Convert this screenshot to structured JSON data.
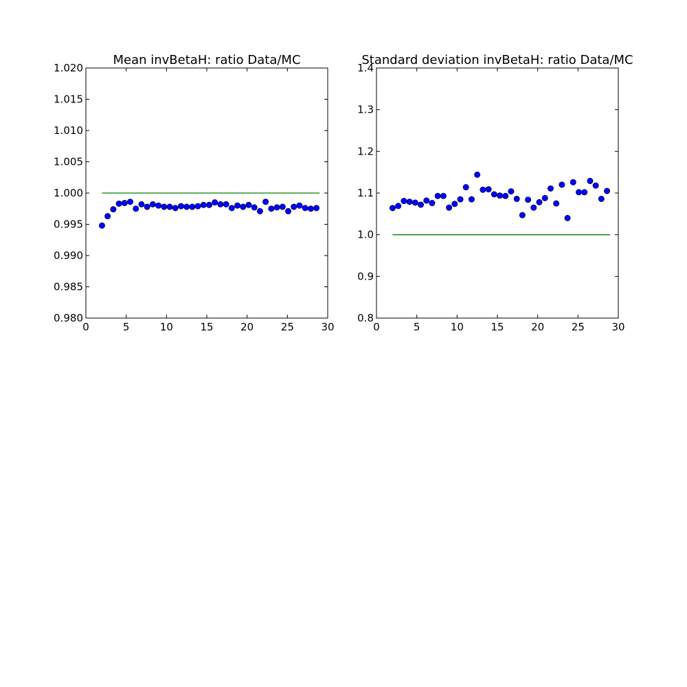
{
  "chart_data": [
    {
      "type": "scatter",
      "title": "Mean invBetaH: ratio Data/MC",
      "xlabel": "",
      "ylabel": "",
      "xlim": [
        0,
        30
      ],
      "ylim": [
        0.98,
        1.02
      ],
      "xticks": [
        "0",
        "5",
        "10",
        "15",
        "20",
        "25",
        "30"
      ],
      "yticks": [
        "0.980",
        "0.985",
        "0.990",
        "0.995",
        "1.000",
        "1.005",
        "1.010",
        "1.015",
        "1.020"
      ],
      "grid": false,
      "series": [
        {
          "kind": "points",
          "color": "#0000ff",
          "x": [
            2.0,
            2.7,
            3.4,
            4.1,
            4.8,
            5.5,
            6.2,
            6.9,
            7.6,
            8.3,
            9.0,
            9.7,
            10.4,
            11.1,
            11.8,
            12.5,
            13.2,
            13.9,
            14.6,
            15.3,
            16.0,
            16.7,
            17.4,
            18.1,
            18.8,
            19.5,
            20.2,
            20.9,
            21.6,
            22.3,
            23.0,
            23.7,
            24.4,
            25.1,
            25.8,
            26.5,
            27.2,
            27.9,
            28.6
          ],
          "y": [
            0.9948,
            0.9963,
            0.9974,
            0.9983,
            0.9984,
            0.9986,
            0.9975,
            0.9982,
            0.9978,
            0.9982,
            0.998,
            0.9978,
            0.9978,
            0.9976,
            0.9979,
            0.9978,
            0.9978,
            0.9979,
            0.9981,
            0.9981,
            0.9985,
            0.9982,
            0.9982,
            0.9976,
            0.998,
            0.9978,
            0.9981,
            0.9977,
            0.9971,
            0.9986,
            0.9975,
            0.9977,
            0.9978,
            0.9971,
            0.9978,
            0.998,
            0.9976,
            0.9975,
            0.9976
          ]
        },
        {
          "kind": "line",
          "color": "#008000",
          "x": [
            2,
            29
          ],
          "y": [
            1.0,
            1.0
          ]
        }
      ]
    },
    {
      "type": "scatter",
      "title": "Standard deviation invBetaH: ratio Data/MC",
      "xlabel": "",
      "ylabel": "",
      "xlim": [
        0,
        30
      ],
      "ylim": [
        0.8,
        1.4
      ],
      "xticks": [
        "0",
        "5",
        "10",
        "15",
        "20",
        "25",
        "30"
      ],
      "yticks": [
        "0.8",
        "0.9",
        "1.0",
        "1.1",
        "1.2",
        "1.3",
        "1.4"
      ],
      "grid": false,
      "series": [
        {
          "kind": "points",
          "color": "#0000ff",
          "x": [
            2.0,
            2.7,
            3.4,
            4.1,
            4.8,
            5.5,
            6.2,
            6.9,
            7.6,
            8.3,
            9.0,
            9.7,
            10.4,
            11.1,
            11.8,
            12.5,
            13.2,
            13.9,
            14.6,
            15.3,
            16.0,
            16.7,
            17.4,
            18.1,
            18.8,
            19.5,
            20.2,
            20.9,
            21.6,
            22.3,
            23.0,
            23.7,
            24.4,
            25.1,
            25.8,
            26.5,
            27.2,
            27.9,
            28.6
          ],
          "y": [
            1.064,
            1.069,
            1.081,
            1.079,
            1.077,
            1.072,
            1.082,
            1.076,
            1.093,
            1.093,
            1.065,
            1.074,
            1.085,
            1.114,
            1.085,
            1.144,
            1.108,
            1.109,
            1.097,
            1.094,
            1.093,
            1.104,
            1.086,
            1.047,
            1.084,
            1.065,
            1.078,
            1.088,
            1.111,
            1.075,
            1.12,
            1.04,
            1.126,
            1.102,
            1.102,
            1.129,
            1.118,
            1.086,
            1.105
          ]
        },
        {
          "kind": "line",
          "color": "#008000",
          "x": [
            2,
            29
          ],
          "y": [
            1.0,
            1.0
          ]
        }
      ]
    }
  ]
}
